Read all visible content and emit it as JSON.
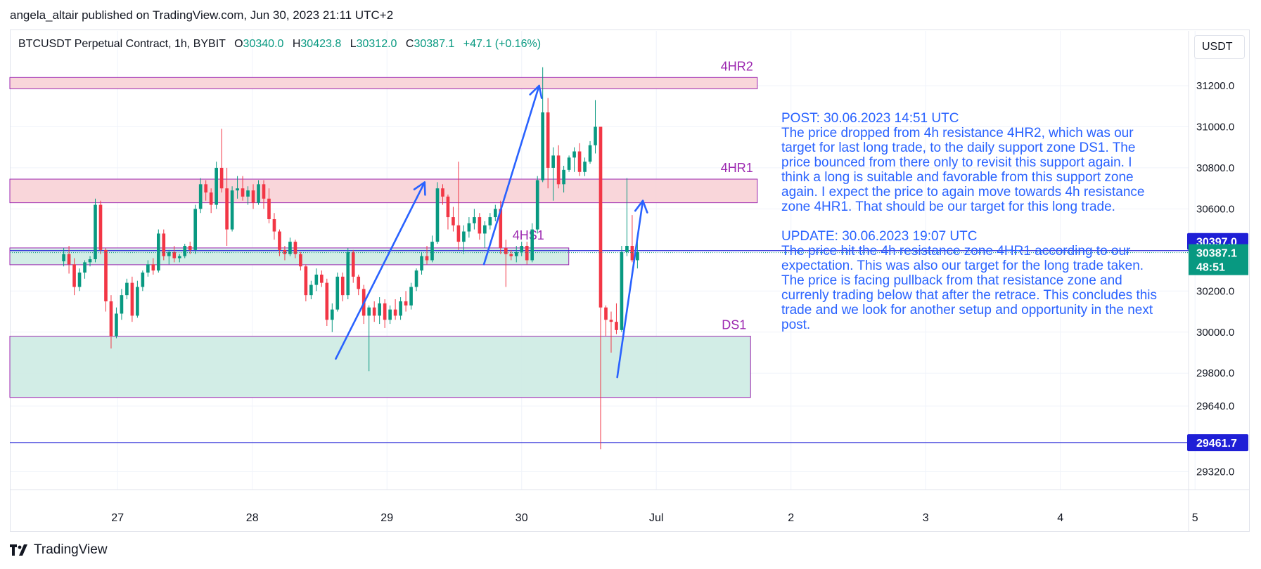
{
  "header": {
    "published_by": "angela_altair published on TradingView.com, Jun 30, 2023 21:11 UTC+2"
  },
  "legend": {
    "symbol": "BTCUSDT Perpetual Contract, 1h, BYBIT",
    "o_label": "O",
    "o": "30340.0",
    "h_label": "H",
    "h": "30423.8",
    "l_label": "L",
    "l": "30312.0",
    "c_label": "C",
    "c": "30387.1",
    "change": "+47.1 (+0.16%)"
  },
  "currency": "USDT",
  "footer": {
    "brand": "TradingView"
  },
  "colors": {
    "up": "#089981",
    "down": "#f23645",
    "resistance_fill": "#f8d1d6",
    "support_fill": "#cdebe3",
    "zone_border": "#9c27b0",
    "annotation": "#2962ff",
    "line": "#1f1fd6",
    "zone_label": "#9c27b0"
  },
  "note": {
    "post": "POST: 30.06.2023 14:51 UTC\nThe price dropped from 4h resistance 4HR2, which was our target for last long trade, to the daily support zone DS1. The price bounced from there only to revisit this support again. I think a long is suitable and favorable from this support zone again. I expect the price to again move towards 4h resistance zone 4HR1. That should be our target for this long trade.",
    "update": "UPDATE: 30.06.2023 19:07 UTC\nThe price hit the 4h resistance zone 4HR1 according to our expectation. This was also our target for the long trade taken. The price is facing pullback from that resistance zone and currenly trading below that after the retrace. This concludes this trade and we look for another setup and opportunity in the next post."
  },
  "chart_data": {
    "type": "candlestick",
    "symbol": "BTCUSDT",
    "x_ticks": [
      {
        "label": "27",
        "day": 27
      },
      {
        "label": "28",
        "day": 28
      },
      {
        "label": "29",
        "day": 29
      },
      {
        "label": "30",
        "day": 30
      },
      {
        "label": "Jul",
        "day": 31
      },
      {
        "label": "2",
        "day": 32
      },
      {
        "label": "3",
        "day": 33
      },
      {
        "label": "4",
        "day": 34
      },
      {
        "label": "5",
        "day": 35
      }
    ],
    "y_ticks": [
      31200,
      31000,
      30800,
      30600,
      30200,
      30000,
      29800,
      29640,
      29320
    ],
    "y_tick_labels": [
      "31200.0",
      "31000.0",
      "30800.0",
      "30600.0",
      "30200.0",
      "30000.0",
      "29800.0",
      "29640.0",
      "29320.0"
    ],
    "ylim": [
      29220,
      31400
    ],
    "xlim_days": [
      26.2,
      35.55
    ],
    "price_labels": [
      {
        "value": 30397.0,
        "text": "30397.0",
        "style": "line"
      },
      {
        "value": 30387.1,
        "text": "30387.1",
        "sub": "48:51",
        "style": "last"
      },
      {
        "value": 29461.7,
        "text": "29461.7",
        "style": "line"
      }
    ],
    "zones": [
      {
        "label": "4HR2",
        "kind": "resistance",
        "top": 31240,
        "bottom": 31185,
        "start_day": 26.2,
        "end_day": 31.75
      },
      {
        "label": "4HR1",
        "kind": "resistance",
        "top": 30745,
        "bottom": 30630,
        "start_day": 26.2,
        "end_day": 31.75
      },
      {
        "label": "4HS1",
        "kind": "support",
        "top": 30410,
        "bottom": 30328,
        "start_day": 26.2,
        "end_day": 30.35
      },
      {
        "label": "DS1",
        "kind": "support",
        "top": 29980,
        "bottom": 29682,
        "start_day": 26.2,
        "end_day": 31.7
      }
    ],
    "horizontal_lines": [
      30397.0,
      29461.7
    ],
    "arrows": [
      {
        "from": [
          28.62,
          29870
        ],
        "to": [
          29.28,
          30730
        ]
      },
      {
        "from": [
          29.72,
          30330
        ],
        "to": [
          30.13,
          31200
        ]
      },
      {
        "from": [
          30.71,
          29780
        ],
        "to": [
          30.9,
          30640
        ]
      }
    ],
    "candles": [
      [
        30345,
        30410,
        30320,
        30380
      ],
      [
        30380,
        30420,
        30285,
        30330
      ],
      [
        30330,
        30360,
        30180,
        30220
      ],
      [
        30220,
        30310,
        30200,
        30290
      ],
      [
        30290,
        30350,
        30260,
        30340
      ],
      [
        30340,
        30370,
        30320,
        30355
      ],
      [
        30355,
        30650,
        30340,
        30620
      ],
      [
        30620,
        30640,
        30380,
        30400
      ],
      [
        30400,
        30410,
        30100,
        30150
      ],
      [
        30150,
        30180,
        29920,
        29980
      ],
      [
        29980,
        30120,
        29970,
        30090
      ],
      [
        30090,
        30210,
        30060,
        30180
      ],
      [
        30180,
        30260,
        30160,
        30240
      ],
      [
        30240,
        30270,
        30050,
        30080
      ],
      [
        30080,
        30250,
        30070,
        30220
      ],
      [
        30220,
        30300,
        30200,
        30290
      ],
      [
        30290,
        30350,
        30270,
        30330
      ],
      [
        30330,
        30360,
        30280,
        30300
      ],
      [
        30300,
        30500,
        30290,
        30480
      ],
      [
        30480,
        30500,
        30350,
        30370
      ],
      [
        30370,
        30400,
        30330,
        30390
      ],
      [
        30390,
        30420,
        30340,
        30360
      ],
      [
        30360,
        30380,
        30340,
        30370
      ],
      [
        30370,
        30430,
        30360,
        30420
      ],
      [
        30420,
        30440,
        30380,
        30400
      ],
      [
        30400,
        30620,
        30380,
        30600
      ],
      [
        30600,
        30750,
        30580,
        30720
      ],
      [
        30720,
        30740,
        30640,
        30680
      ],
      [
        30680,
        30700,
        30580,
        30620
      ],
      [
        30620,
        30830,
        30600,
        30800
      ],
      [
        30800,
        30990,
        30680,
        30700
      ],
      [
        30700,
        30800,
        30420,
        30500
      ],
      [
        30500,
        30710,
        30490,
        30690
      ],
      [
        30690,
        30760,
        30650,
        30700
      ],
      [
        30700,
        30760,
        30640,
        30660
      ],
      [
        30660,
        30710,
        30620,
        30690
      ],
      [
        30690,
        30720,
        30600,
        30630
      ],
      [
        30630,
        30740,
        30620,
        30720
      ],
      [
        30720,
        30740,
        30600,
        30650
      ],
      [
        30650,
        30700,
        30530,
        30550
      ],
      [
        30550,
        30580,
        30450,
        30490
      ],
      [
        30490,
        30500,
        30370,
        30400
      ],
      [
        30400,
        30420,
        30350,
        30380
      ],
      [
        30380,
        30460,
        30370,
        30440
      ],
      [
        30440,
        30450,
        30360,
        30380
      ],
      [
        30380,
        30390,
        30300,
        30320
      ],
      [
        30320,
        30330,
        30150,
        30180
      ],
      [
        30180,
        30250,
        30160,
        30230
      ],
      [
        30230,
        30310,
        30200,
        30280
      ],
      [
        30280,
        30300,
        30220,
        30240
      ],
      [
        30240,
        30260,
        30030,
        30060
      ],
      [
        30060,
        30140,
        30000,
        30110
      ],
      [
        30110,
        30290,
        30100,
        30270
      ],
      [
        30270,
        30290,
        30150,
        30180
      ],
      [
        30180,
        30410,
        30160,
        30390
      ],
      [
        30390,
        30400,
        30240,
        30270
      ],
      [
        30270,
        30280,
        30180,
        30210
      ],
      [
        30210,
        30230,
        30040,
        30080
      ],
      [
        30080,
        30130,
        29810,
        30120
      ],
      [
        30120,
        30150,
        30050,
        30080
      ],
      [
        30080,
        30170,
        30040,
        30140
      ],
      [
        30140,
        30160,
        30020,
        30060
      ],
      [
        30060,
        30130,
        30040,
        30110
      ],
      [
        30110,
        30160,
        30060,
        30080
      ],
      [
        30080,
        30170,
        30060,
        30150
      ],
      [
        30150,
        30200,
        30100,
        30130
      ],
      [
        30130,
        30240,
        30110,
        30220
      ],
      [
        30220,
        30310,
        30200,
        30300
      ],
      [
        30300,
        30390,
        30280,
        30370
      ],
      [
        30370,
        30420,
        30330,
        30350
      ],
      [
        30350,
        30470,
        30340,
        30440
      ],
      [
        30440,
        30730,
        30430,
        30700
      ],
      [
        30700,
        30720,
        30620,
        30660
      ],
      [
        30660,
        30670,
        30500,
        30560
      ],
      [
        30560,
        30610,
        30490,
        30520
      ],
      [
        30520,
        30830,
        30400,
        30440
      ],
      [
        30440,
        30520,
        30380,
        30490
      ],
      [
        30490,
        30560,
        30460,
        30530
      ],
      [
        30530,
        30600,
        30500,
        30560
      ],
      [
        30560,
        30580,
        30450,
        30480
      ],
      [
        30480,
        30540,
        30410,
        30520
      ],
      [
        30520,
        30580,
        30500,
        30560
      ],
      [
        30560,
        30620,
        30540,
        30600
      ],
      [
        30600,
        30640,
        30380,
        30410
      ],
      [
        30410,
        30450,
        30220,
        30380
      ],
      [
        30380,
        30400,
        30350,
        30370
      ],
      [
        30370,
        30420,
        30340,
        30390
      ],
      [
        30390,
        30440,
        30370,
        30420
      ],
      [
        30420,
        30440,
        30330,
        30350
      ],
      [
        30350,
        30530,
        30340,
        30500
      ],
      [
        30500,
        30760,
        30480,
        30740
      ],
      [
        30740,
        31290,
        30730,
        31070
      ],
      [
        31070,
        31140,
        30700,
        30800
      ],
      [
        30800,
        30900,
        30640,
        30860
      ],
      [
        30860,
        30910,
        30700,
        30720
      ],
      [
        30720,
        30810,
        30680,
        30790
      ],
      [
        30790,
        30860,
        30780,
        30850
      ],
      [
        30850,
        30900,
        30780,
        30880
      ],
      [
        30880,
        30920,
        30760,
        30780
      ],
      [
        30780,
        30850,
        30760,
        30830
      ],
      [
        30830,
        30930,
        30820,
        30910
      ],
      [
        30910,
        31130,
        30870,
        31000
      ],
      [
        31000,
        31000,
        29430,
        30120
      ],
      [
        30120,
        30130,
        29980,
        30060
      ],
      [
        30060,
        30100,
        29900,
        30050
      ],
      [
        30050,
        30140,
        29990,
        30010
      ],
      [
        30010,
        30420,
        30000,
        30390
      ],
      [
        30390,
        30750,
        30370,
        30420
      ],
      [
        30420,
        30570,
        30340,
        30350
      ],
      [
        30350,
        30440,
        30310,
        30390
      ]
    ]
  }
}
